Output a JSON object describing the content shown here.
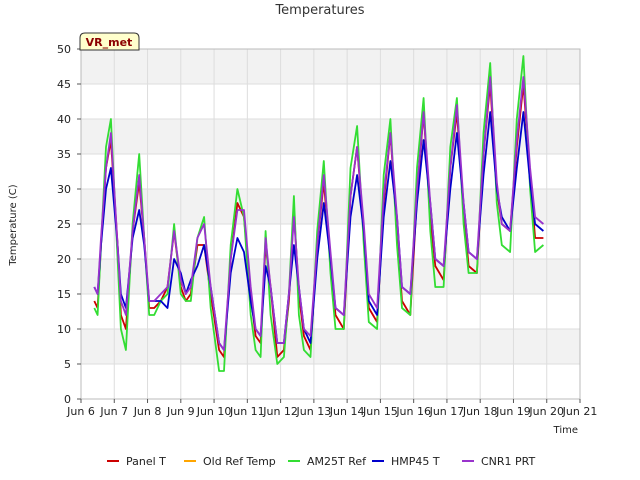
{
  "chart_data": {
    "type": "line",
    "title": "Temperatures",
    "xlabel": "Time",
    "ylabel": "Temperature (C)",
    "badge": "VR_met",
    "ylim": [
      0,
      50
    ],
    "yticks": [
      0,
      5,
      10,
      15,
      20,
      25,
      30,
      35,
      40,
      45,
      50
    ],
    "xlim": [
      6,
      21
    ],
    "xticks": [
      {
        "v": 6,
        "label": "Jun 6"
      },
      {
        "v": 7,
        "label": "Jun 7"
      },
      {
        "v": 8,
        "label": "Jun 8"
      },
      {
        "v": 9,
        "label": "Jun 9"
      },
      {
        "v": 10,
        "label": "Jun 10"
      },
      {
        "v": 11,
        "label": "Jun 11"
      },
      {
        "v": 12,
        "label": "Jun 12"
      },
      {
        "v": 13,
        "label": "Jun 13"
      },
      {
        "v": 14,
        "label": "Jun 14"
      },
      {
        "v": 15,
        "label": "Jun 15"
      },
      {
        "v": 16,
        "label": "Jun 16"
      },
      {
        "v": 17,
        "label": "Jun 17"
      },
      {
        "v": 18,
        "label": "Jun 18"
      },
      {
        "v": 19,
        "label": "Jun 19"
      },
      {
        "v": 20,
        "label": "Jun 20"
      },
      {
        "v": 21,
        "label": "Jun 21"
      }
    ],
    "grid": true,
    "band_fill": "#f2f2f2",
    "legend_position": "bottom",
    "series": [
      {
        "name": "Panel T",
        "color": "#cc0000",
        "x": [
          6.4,
          6.5,
          6.6,
          6.75,
          6.9,
          7.1,
          7.2,
          7.35,
          7.55,
          7.75,
          7.9,
          8.05,
          8.2,
          8.4,
          8.6,
          8.8,
          9.0,
          9.15,
          9.3,
          9.5,
          9.7,
          9.9,
          10.15,
          10.3,
          10.5,
          10.7,
          10.9,
          11.1,
          11.25,
          11.4,
          11.55,
          11.7,
          11.9,
          12.1,
          12.25,
          12.4,
          12.55,
          12.7,
          12.9,
          13.1,
          13.3,
          13.5,
          13.65,
          13.9,
          14.1,
          14.3,
          14.5,
          14.65,
          14.9,
          15.1,
          15.3,
          15.5,
          15.65,
          15.9,
          16.1,
          16.3,
          16.5,
          16.65,
          16.9,
          17.1,
          17.3,
          17.5,
          17.65,
          17.9,
          18.1,
          18.3,
          18.5,
          18.65,
          18.9,
          19.1,
          19.3,
          19.5,
          19.65,
          19.9
        ],
        "y": [
          14,
          13,
          22,
          33,
          37,
          22,
          12,
          10,
          24,
          31,
          23,
          13,
          13,
          14,
          16,
          24,
          16,
          14,
          15,
          22,
          22,
          15,
          7,
          6,
          20,
          28,
          26,
          15,
          9,
          8,
          22,
          16,
          6,
          7,
          14,
          27,
          15,
          9,
          7,
          22,
          31,
          20,
          12,
          10,
          29,
          36,
          24,
          13,
          11,
          28,
          38,
          24,
          14,
          12,
          29,
          41,
          26,
          19,
          17,
          33,
          41,
          27,
          19,
          18,
          35,
          45,
          30,
          25,
          24,
          36,
          45,
          32,
          23,
          23
        ]
      },
      {
        "name": "Old Ref Temp",
        "color": "#ffa500",
        "x": [],
        "y": []
      },
      {
        "name": "AM25T Ref",
        "color": "#33dd33",
        "x": [
          6.4,
          6.5,
          6.6,
          6.75,
          6.9,
          7.1,
          7.2,
          7.35,
          7.55,
          7.75,
          7.9,
          8.05,
          8.2,
          8.4,
          8.6,
          8.8,
          9.0,
          9.15,
          9.3,
          9.5,
          9.7,
          9.9,
          10.15,
          10.3,
          10.5,
          10.7,
          10.9,
          11.1,
          11.25,
          11.4,
          11.55,
          11.7,
          11.9,
          12.1,
          12.25,
          12.4,
          12.55,
          12.7,
          12.9,
          13.1,
          13.3,
          13.5,
          13.65,
          13.9,
          14.1,
          14.3,
          14.5,
          14.65,
          14.9,
          15.1,
          15.3,
          15.5,
          15.65,
          15.9,
          16.1,
          16.3,
          16.5,
          16.65,
          16.9,
          17.1,
          17.3,
          17.5,
          17.65,
          17.9,
          18.1,
          18.3,
          18.5,
          18.65,
          18.9,
          19.1,
          19.3,
          19.5,
          19.65,
          19.9
        ],
        "y": [
          13,
          12,
          22,
          36,
          40,
          20,
          10,
          7,
          25,
          35,
          23,
          12,
          12,
          14,
          15,
          25,
          15,
          14,
          14,
          23,
          26,
          13,
          4,
          4,
          22,
          30,
          26,
          12,
          7,
          6,
          24,
          12,
          5,
          6,
          15,
          29,
          12,
          7,
          6,
          24,
          34,
          18,
          10,
          10,
          33,
          39,
          22,
          11,
          10,
          32,
          40,
          22,
          13,
          12,
          33,
          43,
          24,
          16,
          16,
          36,
          43,
          25,
          18,
          18,
          38,
          48,
          28,
          22,
          21,
          40,
          49,
          30,
          21,
          22
        ]
      },
      {
        "name": "HMP45 T",
        "color": "#0000cc",
        "x": [
          6.4,
          6.5,
          6.6,
          6.75,
          6.9,
          7.1,
          7.2,
          7.35,
          7.55,
          7.75,
          7.9,
          8.05,
          8.2,
          8.4,
          8.6,
          8.8,
          9.0,
          9.15,
          9.3,
          9.5,
          9.7,
          9.9,
          10.15,
          10.3,
          10.5,
          10.7,
          10.9,
          11.1,
          11.25,
          11.4,
          11.55,
          11.7,
          11.9,
          12.1,
          12.25,
          12.4,
          12.55,
          12.7,
          12.9,
          13.1,
          13.3,
          13.5,
          13.65,
          13.9,
          14.1,
          14.3,
          14.5,
          14.65,
          14.9,
          15.1,
          15.3,
          15.5,
          15.65,
          15.9,
          16.1,
          16.3,
          16.5,
          16.65,
          16.9,
          17.1,
          17.3,
          17.5,
          17.65,
          17.9,
          18.1,
          18.3,
          18.5,
          18.65,
          18.9,
          19.1,
          19.3,
          19.5,
          19.65,
          19.9
        ],
        "y": [
          16,
          15,
          22,
          30,
          33,
          22,
          15,
          13,
          23,
          27,
          22,
          14,
          14,
          14,
          13,
          20,
          18,
          15,
          17,
          19,
          22,
          16,
          8,
          7,
          18,
          23,
          21,
          14,
          10,
          9,
          19,
          16,
          8,
          8,
          15,
          22,
          16,
          10,
          8,
          20,
          28,
          20,
          13,
          12,
          26,
          32,
          24,
          14,
          12,
          26,
          34,
          26,
          16,
          15,
          28,
          37,
          28,
          20,
          19,
          30,
          38,
          28,
          21,
          20,
          32,
          41,
          30,
          26,
          24,
          33,
          41,
          31,
          25,
          24
        ]
      },
      {
        "name": "CNR1 PRT",
        "color": "#9933cc",
        "x": [
          6.4,
          6.5,
          6.6,
          6.75,
          6.9,
          7.1,
          7.2,
          7.35,
          7.55,
          7.75,
          7.9,
          8.05,
          8.2,
          8.4,
          8.6,
          8.8,
          9.0,
          9.15,
          9.3,
          9.5,
          9.7,
          9.9,
          10.15,
          10.3,
          10.5,
          10.7,
          10.9,
          11.1,
          11.25,
          11.4,
          11.55,
          11.7,
          11.9,
          12.1,
          12.25,
          12.4,
          12.55,
          12.7,
          12.9,
          13.1,
          13.3,
          13.5,
          13.65,
          13.9,
          14.1,
          14.3,
          14.5,
          14.65,
          14.9,
          15.1,
          15.3,
          15.5,
          15.65,
          15.9,
          16.1,
          16.3,
          16.5,
          16.65,
          16.9,
          17.1,
          17.3,
          17.5,
          17.65,
          17.9,
          18.1,
          18.3,
          18.5,
          18.65,
          18.9,
          19.1,
          19.3,
          19.5,
          19.65,
          19.9
        ],
        "y": [
          16,
          15,
          23,
          33,
          38,
          22,
          14,
          12,
          24,
          32,
          23,
          14,
          14,
          15,
          16,
          24,
          17,
          15,
          16,
          23,
          25,
          16,
          8,
          7,
          20,
          27,
          27,
          16,
          10,
          9,
          23,
          16,
          8,
          8,
          15,
          26,
          16,
          10,
          9,
          22,
          32,
          21,
          13,
          12,
          29,
          36,
          25,
          15,
          13,
          29,
          38,
          26,
          16,
          15,
          30,
          41,
          28,
          20,
          19,
          33,
          42,
          28,
          21,
          20,
          35,
          46,
          31,
          25,
          24,
          37,
          46,
          33,
          26,
          25
        ]
      }
    ]
  }
}
